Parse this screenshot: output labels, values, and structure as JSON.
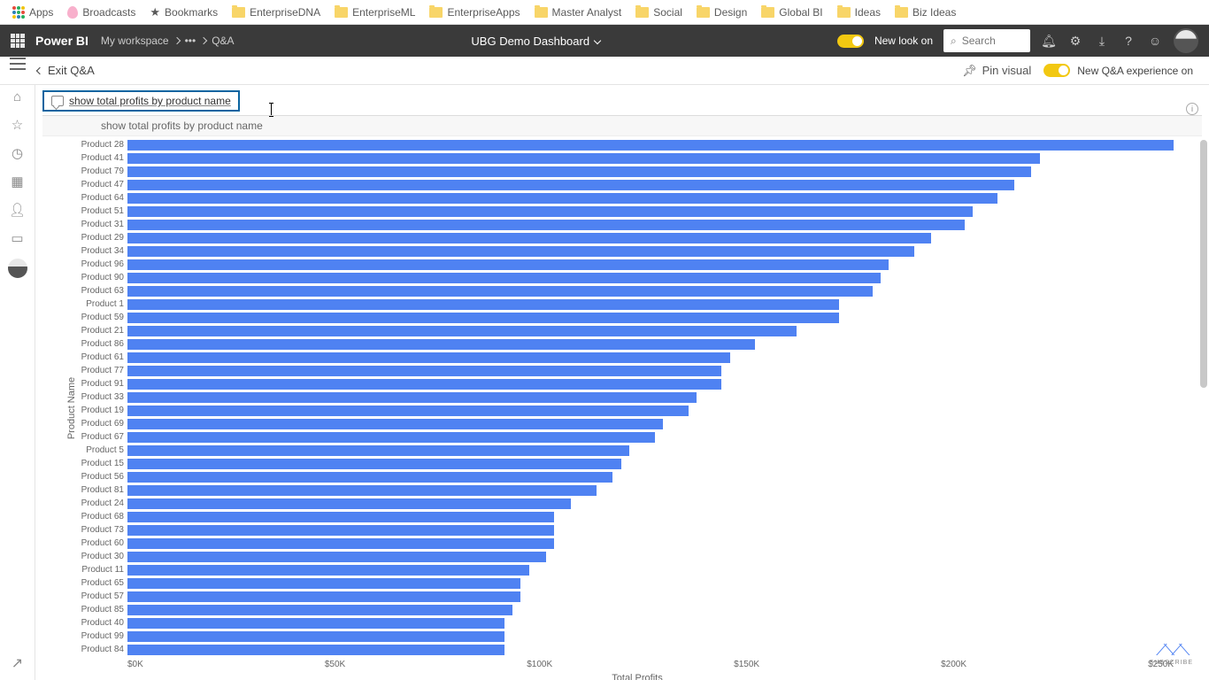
{
  "bookmarks": {
    "items": [
      "Apps",
      "Broadcasts",
      "Bookmarks",
      "EnterpriseDNA",
      "EnterpriseML",
      "EnterpriseApps",
      "Master Analyst",
      "Social",
      "Design",
      "Global BI",
      "Ideas",
      "Biz Ideas"
    ]
  },
  "appbar": {
    "brand": "Power BI",
    "workspace": "My workspace",
    "page": "Q&A",
    "dashboard": "UBG Demo Dashboard",
    "newlook_label": "New look on",
    "search_placeholder": "Search"
  },
  "subheader": {
    "exit": "Exit Q&A",
    "pin": "Pin visual",
    "newqna": "New Q&A experience on"
  },
  "qna": {
    "input": "show total profits by product name",
    "suggestion": "show total profits by product name"
  },
  "chart": {
    "type": "bar-horizontal",
    "bar_color": "#4f82f2",
    "background": "#ffffff",
    "ylabel": "Product Name",
    "xlabel": "Total Profits",
    "xlim": [
      0,
      250
    ],
    "xticks": [
      "$0K",
      "$50K",
      "$100K",
      "$150K",
      "$200K",
      "$250K"
    ],
    "label_fontsize": 10,
    "data": [
      {
        "label": "Product 28",
        "value": 250
      },
      {
        "label": "Product 41",
        "value": 218
      },
      {
        "label": "Product 79",
        "value": 216
      },
      {
        "label": "Product 47",
        "value": 212
      },
      {
        "label": "Product 64",
        "value": 208
      },
      {
        "label": "Product 51",
        "value": 202
      },
      {
        "label": "Product 31",
        "value": 200
      },
      {
        "label": "Product 29",
        "value": 192
      },
      {
        "label": "Product 34",
        "value": 188
      },
      {
        "label": "Product 96",
        "value": 182
      },
      {
        "label": "Product 90",
        "value": 180
      },
      {
        "label": "Product 63",
        "value": 178
      },
      {
        "label": "Product 1",
        "value": 170
      },
      {
        "label": "Product 59",
        "value": 170
      },
      {
        "label": "Product 21",
        "value": 160
      },
      {
        "label": "Product 86",
        "value": 150
      },
      {
        "label": "Product 61",
        "value": 144
      },
      {
        "label": "Product 77",
        "value": 142
      },
      {
        "label": "Product 91",
        "value": 142
      },
      {
        "label": "Product 33",
        "value": 136
      },
      {
        "label": "Product 19",
        "value": 134
      },
      {
        "label": "Product 69",
        "value": 128
      },
      {
        "label": "Product 67",
        "value": 126
      },
      {
        "label": "Product 5",
        "value": 120
      },
      {
        "label": "Product 15",
        "value": 118
      },
      {
        "label": "Product 56",
        "value": 116
      },
      {
        "label": "Product 81",
        "value": 112
      },
      {
        "label": "Product 24",
        "value": 106
      },
      {
        "label": "Product 68",
        "value": 102
      },
      {
        "label": "Product 73",
        "value": 102
      },
      {
        "label": "Product 60",
        "value": 102
      },
      {
        "label": "Product 30",
        "value": 100
      },
      {
        "label": "Product 11",
        "value": 96
      },
      {
        "label": "Product 65",
        "value": 94
      },
      {
        "label": "Product 57",
        "value": 94
      },
      {
        "label": "Product 85",
        "value": 92
      },
      {
        "label": "Product 40",
        "value": 90
      },
      {
        "label": "Product 99",
        "value": 90
      },
      {
        "label": "Product 84",
        "value": 90
      }
    ]
  },
  "subscribe": "SUBSCRIBE"
}
